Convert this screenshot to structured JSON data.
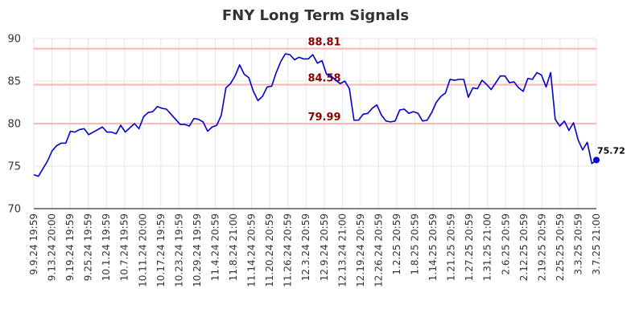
{
  "chart_data": {
    "type": "line",
    "title": "FNY Long Term Signals",
    "xlabel": "",
    "ylabel": "",
    "ylim": [
      70,
      90
    ],
    "yticks": [
      70,
      75,
      80,
      85,
      90
    ],
    "grid": true,
    "x_tick_labels": [
      "9.9.24 19:59",
      "9.13.24 20:00",
      "9.19.24 19:59",
      "9.25.24 19:59",
      "10.1.24 19:59",
      "10.7.24 19:59",
      "10.11.24 20:00",
      "10.17.24 19:59",
      "10.23.24 19:59",
      "10.29.24 19:59",
      "11.4.24 20:59",
      "11.8.24 21:00",
      "11.14.24 20:59",
      "11.20.24 20:59",
      "11.26.24 20:59",
      "12.3.24 20:59",
      "12.9.24 20:59",
      "12.13.24 21:00",
      "12.19.24 20:59",
      "12.26.24 20:59",
      "1.2.25 20:59",
      "1.8.25 20:59",
      "1.14.25 20:59",
      "1.21.25 20:59",
      "1.27.25 20:59",
      "1.31.25 21:00",
      "2.6.25 20:59",
      "2.12.25 20:59",
      "2.19.25 20:59",
      "2.25.25 20:59",
      "3.3.25 20:59",
      "3.7.25 21:00"
    ],
    "values": [
      74.0,
      73.8,
      74.7,
      75.6,
      76.8,
      77.4,
      77.7,
      77.7,
      79.1,
      79.0,
      79.3,
      79.4,
      78.7,
      79.0,
      79.3,
      79.6,
      79.0,
      79.0,
      78.8,
      79.8,
      79.0,
      79.5,
      80.0,
      79.4,
      80.8,
      81.3,
      81.4,
      82.0,
      81.8,
      81.7,
      81.1,
      80.5,
      79.9,
      79.9,
      79.7,
      80.6,
      80.5,
      80.2,
      79.1,
      79.6,
      79.8,
      81.0,
      84.2,
      84.7,
      85.6,
      86.9,
      85.8,
      85.4,
      83.8,
      82.7,
      83.2,
      84.3,
      84.4,
      86.0,
      87.3,
      88.2,
      88.1,
      87.5,
      87.8,
      87.6,
      87.6,
      88.1,
      87.1,
      87.4,
      85.8,
      85.6,
      85.1,
      84.7,
      85.0,
      84.1,
      80.4,
      80.4,
      81.1,
      81.2,
      81.8,
      82.2,
      81.0,
      80.3,
      80.2,
      80.3,
      81.6,
      81.7,
      81.2,
      81.4,
      81.2,
      80.3,
      80.4,
      81.3,
      82.5,
      83.2,
      83.6,
      85.2,
      85.1,
      85.2,
      85.2,
      83.1,
      84.2,
      84.1,
      85.1,
      84.6,
      84.0,
      84.8,
      85.6,
      85.6,
      84.8,
      84.9,
      84.2,
      83.8,
      85.3,
      85.2,
      86.0,
      85.7,
      84.3,
      86.0,
      80.5,
      79.7,
      80.3,
      79.2,
      80.1,
      78.1,
      76.9,
      77.8,
      75.3,
      75.72
    ],
    "reference_lines": [
      {
        "value": 88.81,
        "label": "88.81"
      },
      {
        "value": 84.58,
        "label": "84.58"
      },
      {
        "value": 79.99,
        "label": "79.99"
      }
    ],
    "last_point": {
      "value": 75.72,
      "label": "75.72"
    },
    "colors": {
      "line": "#0000cc",
      "reference": "#ffb3b3",
      "reference_label": "#8b0000",
      "grid": "#e6e6e6"
    }
  }
}
